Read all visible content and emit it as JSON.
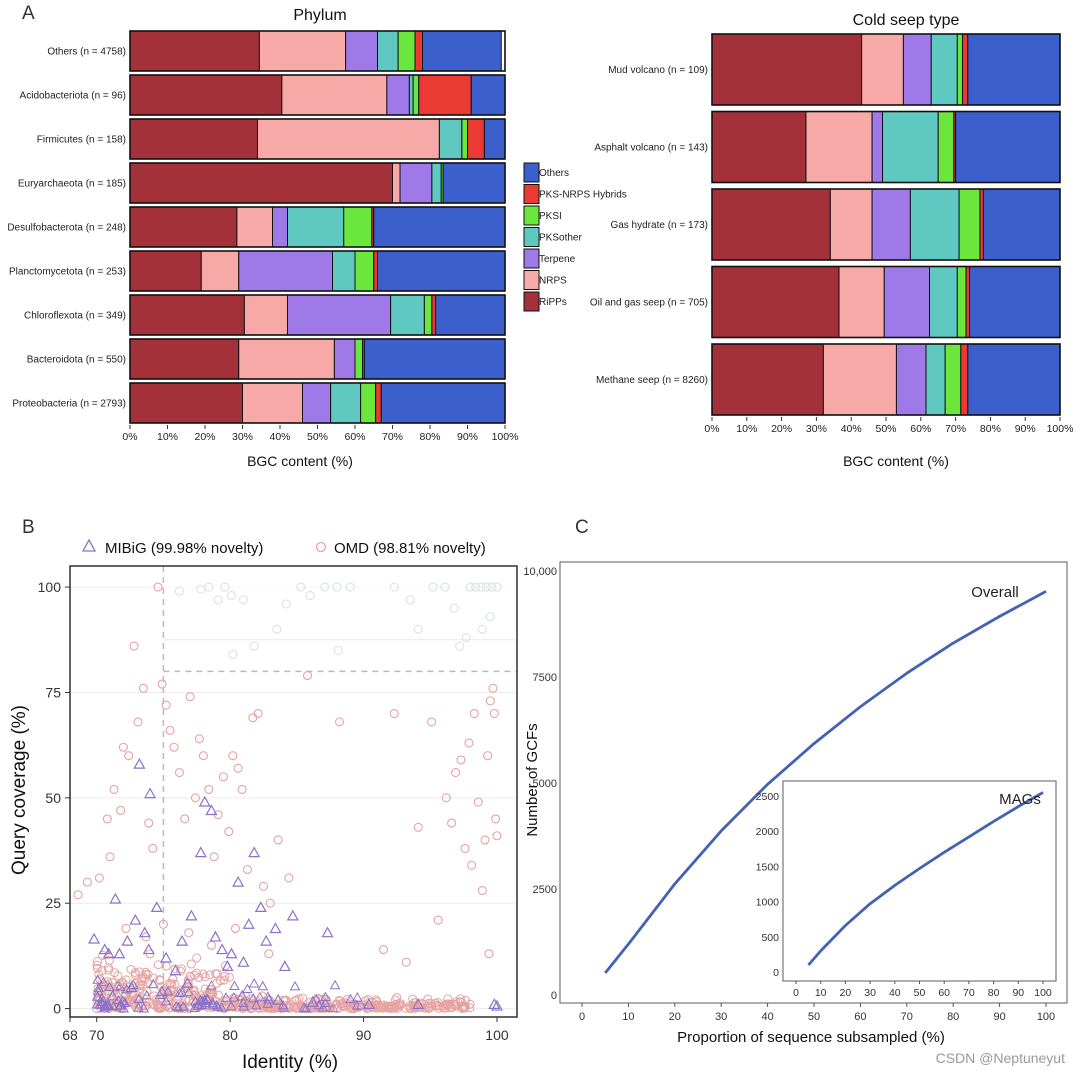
{
  "panel_labels": {
    "a": "A",
    "b": "B",
    "c": "C"
  },
  "colors": {
    "RiPPs": "#a4303a",
    "NRPS": "#f7a9a8",
    "Terpene": "#9f79e8",
    "PKSother": "#5fc9c1",
    "PKSI": "#6be63c",
    "PKS-NRPS Hybrids": "#ea3a33",
    "Others": "#3b5fcb",
    "line": "#4462b4",
    "omd": "#e6a3a0",
    "mibig": "#8a72cc"
  },
  "chart_data": [
    {
      "type": "bar",
      "orientation": "horizontal",
      "stacked": true,
      "title": "Phylum",
      "xlabel": "BGC content (%)",
      "xlim": [
        0,
        100
      ],
      "xticks": [
        "0%",
        "10%",
        "20%",
        "30%",
        "40%",
        "50%",
        "60%",
        "70%",
        "80%",
        "90%",
        "100%"
      ],
      "legend": [
        "Others",
        "PKS-NRPS Hybrids",
        "PKSI",
        "PKSother",
        "Terpene",
        "NRPS",
        "RiPPs"
      ],
      "legend_placement": "right",
      "categories": [
        "Others (n = 4758)",
        "Acidobacteriota (n = 96)",
        "Firmicutes (n = 158)",
        "Euryarchaeota (n = 185)",
        "Desulfobacterota (n = 248)",
        "Planctomycetota (n = 253)",
        "Chloroflexota (n = 349)",
        "Bacteroidota (n = 550)",
        "Proteobacteria (n = 2793)"
      ],
      "series": [
        {
          "name": "RiPPs",
          "values": [
            34.5,
            40.5,
            34.0,
            70.0,
            28.5,
            19.0,
            30.5,
            29.0,
            30.0
          ]
        },
        {
          "name": "NRPS",
          "values": [
            23.0,
            28.0,
            48.5,
            2.0,
            9.5,
            10.0,
            11.5,
            25.5,
            16.0
          ]
        },
        {
          "name": "Terpene",
          "values": [
            8.5,
            6.0,
            0.0,
            8.5,
            4.0,
            25.0,
            27.5,
            5.5,
            7.5
          ]
        },
        {
          "name": "PKSother",
          "values": [
            5.5,
            1.0,
            6.0,
            2.5,
            15.0,
            6.0,
            9.0,
            0.0,
            8.0
          ]
        },
        {
          "name": "PKSI",
          "values": [
            4.5,
            1.5,
            1.5,
            0.5,
            7.5,
            5.0,
            2.0,
            2.0,
            4.0
          ]
        },
        {
          "name": "PKS-NRPS Hybrids",
          "values": [
            2.0,
            14.0,
            4.5,
            0.0,
            0.5,
            1.0,
            1.0,
            0.5,
            1.5
          ]
        },
        {
          "name": "Others",
          "values": [
            21.0,
            9.0,
            5.5,
            16.5,
            35.0,
            34.0,
            18.5,
            37.5,
            33.0
          ]
        }
      ]
    },
    {
      "type": "bar",
      "orientation": "horizontal",
      "stacked": true,
      "title": "Cold seep type",
      "xlabel": "BGC content (%)",
      "xlim": [
        0,
        100
      ],
      "xticks": [
        "0%",
        "10%",
        "20%",
        "30%",
        "40%",
        "50%",
        "60%",
        "70%",
        "80%",
        "90%",
        "100%"
      ],
      "categories": [
        "Mud volcano (n = 109)",
        "Asphalt volcano (n = 143)",
        "Gas hydrate (n = 173)",
        "Oil and gas seep (n = 705)",
        "Methane seep (n = 8260)"
      ],
      "series": [
        {
          "name": "RiPPs",
          "values": [
            43.0,
            27.0,
            34.0,
            36.5,
            32.0
          ]
        },
        {
          "name": "NRPS",
          "values": [
            12.0,
            19.0,
            12.0,
            13.0,
            21.0
          ]
        },
        {
          "name": "Terpene",
          "values": [
            8.0,
            3.0,
            11.0,
            13.0,
            8.5
          ]
        },
        {
          "name": "PKSother",
          "values": [
            7.5,
            16.0,
            14.0,
            8.0,
            5.5
          ]
        },
        {
          "name": "PKSI",
          "values": [
            1.5,
            4.5,
            6.0,
            2.5,
            4.5
          ]
        },
        {
          "name": "PKS-NRPS Hybrids",
          "values": [
            1.5,
            0.5,
            1.0,
            1.0,
            2.0
          ]
        },
        {
          "name": "Others",
          "values": [
            26.5,
            30.0,
            22.0,
            26.0,
            26.5
          ]
        }
      ]
    },
    {
      "type": "scatter",
      "xlabel": "Identity (%)",
      "ylabel": "Query coverage (%)",
      "xlim": [
        68,
        101.5
      ],
      "ylim": [
        -2,
        105
      ],
      "xticks": [
        "68",
        "70",
        "80",
        "90",
        "100"
      ],
      "yticks": [
        "0",
        "25",
        "50",
        "75",
        "100"
      ],
      "thresholds": {
        "identity": 75,
        "coverage": 80
      },
      "legend_placement": "top",
      "series": [
        {
          "name": "MIBiG (99.98% novelty)",
          "marker": "triangle",
          "points": [
            [
              69.8,
              16.5
            ],
            [
              70.6,
              14
            ],
            [
              70.9,
              13
            ],
            [
              71.4,
              26
            ],
            [
              71.7,
              13
            ],
            [
              72.3,
              16
            ],
            [
              72.9,
              21
            ],
            [
              73.2,
              58
            ],
            [
              73.6,
              18
            ],
            [
              74.0,
              51
            ],
            [
              74.5,
              24
            ],
            [
              73.9,
              14
            ],
            [
              75.2,
              12
            ],
            [
              75.9,
              9
            ],
            [
              76.4,
              16
            ],
            [
              77.1,
              22
            ],
            [
              77.8,
              37
            ],
            [
              78.1,
              49
            ],
            [
              78.6,
              47
            ],
            [
              78.9,
              17
            ],
            [
              79.4,
              14
            ],
            [
              79.8,
              10
            ],
            [
              80.1,
              13
            ],
            [
              80.6,
              30
            ],
            [
              81.0,
              11
            ],
            [
              81.4,
              20
            ],
            [
              81.8,
              37
            ],
            [
              82.3,
              24
            ],
            [
              82.7,
              16
            ],
            [
              83.4,
              19
            ],
            [
              84.1,
              10
            ],
            [
              84.7,
              22
            ],
            [
              87.3,
              18
            ],
            [
              99.8,
              1
            ],
            [
              100.0,
              0.6
            ],
            [
              71.2,
              3
            ],
            [
              72.6,
              5
            ],
            [
              74.9,
              4
            ],
            [
              76.8,
              6
            ],
            [
              78.3,
              2
            ],
            [
              80.9,
              3
            ],
            [
              83.6,
              2
            ],
            [
              86.2,
              1.5
            ],
            [
              90.4,
              1
            ],
            [
              94.1,
              1
            ]
          ]
        },
        {
          "name": "OMD (98.81% novelty)",
          "marker": "circle",
          "points": [
            [
              68.6,
              27
            ],
            [
              69.3,
              30
            ],
            [
              70.2,
              31
            ],
            [
              70.8,
              45
            ],
            [
              71.0,
              36
            ],
            [
              71.3,
              52
            ],
            [
              71.8,
              47
            ],
            [
              72.0,
              62
            ],
            [
              72.4,
              60
            ],
            [
              72.8,
              86
            ],
            [
              73.1,
              68
            ],
            [
              73.5,
              76
            ],
            [
              73.9,
              44
            ],
            [
              74.2,
              38
            ],
            [
              74.6,
              100
            ],
            [
              74.9,
              77
            ],
            [
              75.2,
              72
            ],
            [
              75.5,
              66
            ],
            [
              75.8,
              62
            ],
            [
              76.2,
              56
            ],
            [
              76.6,
              45
            ],
            [
              77.0,
              74
            ],
            [
              77.4,
              50
            ],
            [
              77.7,
              64
            ],
            [
              78.0,
              60
            ],
            [
              78.4,
              52
            ],
            [
              78.8,
              36
            ],
            [
              79.1,
              46
            ],
            [
              79.5,
              55
            ],
            [
              79.9,
              42
            ],
            [
              80.2,
              60
            ],
            [
              80.6,
              57
            ],
            [
              80.9,
              52
            ],
            [
              81.3,
              33
            ],
            [
              81.7,
              69
            ],
            [
              82.1,
              70
            ],
            [
              82.5,
              29
            ],
            [
              83.0,
              25
            ],
            [
              83.6,
              40
            ],
            [
              84.4,
              31
            ],
            [
              85.8,
              79
            ],
            [
              88.2,
              68
            ],
            [
              91.5,
              14
            ],
            [
              92.3,
              70
            ],
            [
              93.2,
              11
            ],
            [
              94.1,
              43
            ],
            [
              95.1,
              68
            ],
            [
              95.6,
              21
            ],
            [
              96.2,
              50
            ],
            [
              96.9,
              56
            ],
            [
              97.3,
              59
            ],
            [
              97.6,
              38
            ],
            [
              97.9,
              63
            ],
            [
              98.3,
              70
            ],
            [
              98.6,
              49
            ],
            [
              98.9,
              28
            ],
            [
              99.1,
              40
            ],
            [
              99.3,
              60
            ],
            [
              99.5,
              73
            ],
            [
              99.7,
              76
            ],
            [
              99.8,
              70
            ],
            [
              99.9,
              45
            ],
            [
              100.0,
              41
            ],
            [
              99.4,
              13
            ],
            [
              98.1,
              34
            ],
            [
              96.6,
              44
            ],
            [
              72.2,
              19
            ],
            [
              73.7,
              17
            ],
            [
              75.0,
              20
            ],
            [
              76.9,
              18
            ],
            [
              78.6,
              15
            ],
            [
              80.4,
              19
            ],
            [
              82.9,
              13
            ],
            [
              70.4,
              9
            ],
            [
              71.6,
              5
            ],
            [
              72.9,
              8
            ],
            [
              74.3,
              3
            ],
            [
              75.7,
              7
            ],
            [
              77.3,
              4
            ],
            [
              79.0,
              6
            ],
            [
              80.8,
              2
            ],
            [
              82.4,
              3
            ],
            [
              84.0,
              2
            ],
            [
              86.0,
              1.5
            ],
            [
              88.0,
              1
            ],
            [
              90.0,
              0.8
            ],
            [
              92.0,
              0.5
            ],
            [
              94.0,
              0.8
            ],
            [
              96.0,
              0.6
            ],
            [
              97.5,
              0.4
            ]
          ]
        },
        {
          "name": "Faded points",
          "marker": "circle",
          "points": [
            [
              76.2,
              99
            ],
            [
              77.8,
              99.5
            ],
            [
              78.4,
              100
            ],
            [
              79.1,
              97
            ],
            [
              79.6,
              100
            ],
            [
              80.1,
              98
            ],
            [
              81.0,
              97
            ],
            [
              83.5,
              90
            ],
            [
              84.2,
              96
            ],
            [
              85.3,
              100
            ],
            [
              86.0,
              98
            ],
            [
              87.1,
              100
            ],
            [
              88.0,
              100
            ],
            [
              89.0,
              100
            ],
            [
              92.3,
              100
            ],
            [
              93.5,
              97
            ],
            [
              94.1,
              90
            ],
            [
              95.2,
              100
            ],
            [
              96.1,
              100
            ],
            [
              96.8,
              95
            ],
            [
              97.2,
              86
            ],
            [
              98.0,
              100
            ],
            [
              98.4,
              100
            ],
            [
              98.8,
              100
            ],
            [
              99.2,
              100
            ],
            [
              99.6,
              100
            ],
            [
              100.0,
              100
            ],
            [
              97.7,
              88
            ],
            [
              98.9,
              90
            ],
            [
              99.5,
              93
            ],
            [
              80.2,
              84
            ],
            [
              81.8,
              86
            ],
            [
              88.1,
              85
            ]
          ]
        }
      ]
    },
    {
      "type": "line",
      "xlabel": "Proportion of sequence subsampled (%)",
      "ylabel": "Number of GCFs",
      "xlim": [
        0,
        100
      ],
      "ylim": [
        0,
        10000
      ],
      "xticks": [
        "0",
        "10",
        "20",
        "30",
        "40",
        "50",
        "60",
        "70",
        "80",
        "90",
        "100"
      ],
      "yticks": [
        "0",
        "2500",
        "5000",
        "7500",
        "10,000"
      ],
      "series": [
        {
          "name": "Overall",
          "x": [
            5,
            10,
            20,
            30,
            40,
            50,
            60,
            70,
            80,
            90,
            100
          ],
          "values": [
            520,
            1200,
            2620,
            3870,
            4970,
            5930,
            6800,
            7590,
            8300,
            8930,
            9520
          ]
        }
      ],
      "inset": {
        "type": "line",
        "xlim": [
          0,
          100
        ],
        "ylim": [
          0,
          2600
        ],
        "xticks": [
          "0",
          "10",
          "20",
          "30",
          "40",
          "50",
          "60",
          "70",
          "80",
          "90",
          "100"
        ],
        "yticks": [
          "0",
          "500",
          "1000",
          "1500",
          "2000",
          "2500"
        ],
        "series": [
          {
            "name": "MAGs",
            "x": [
              5,
              10,
              20,
              30,
              40,
              50,
              60,
              70,
              80,
              90,
              100
            ],
            "values": [
              100,
              300,
              660,
              970,
              1230,
              1470,
              1700,
              1920,
              2140,
              2350,
              2550
            ]
          }
        ]
      }
    }
  ],
  "watermark": "CSDN @Neptuneyut"
}
